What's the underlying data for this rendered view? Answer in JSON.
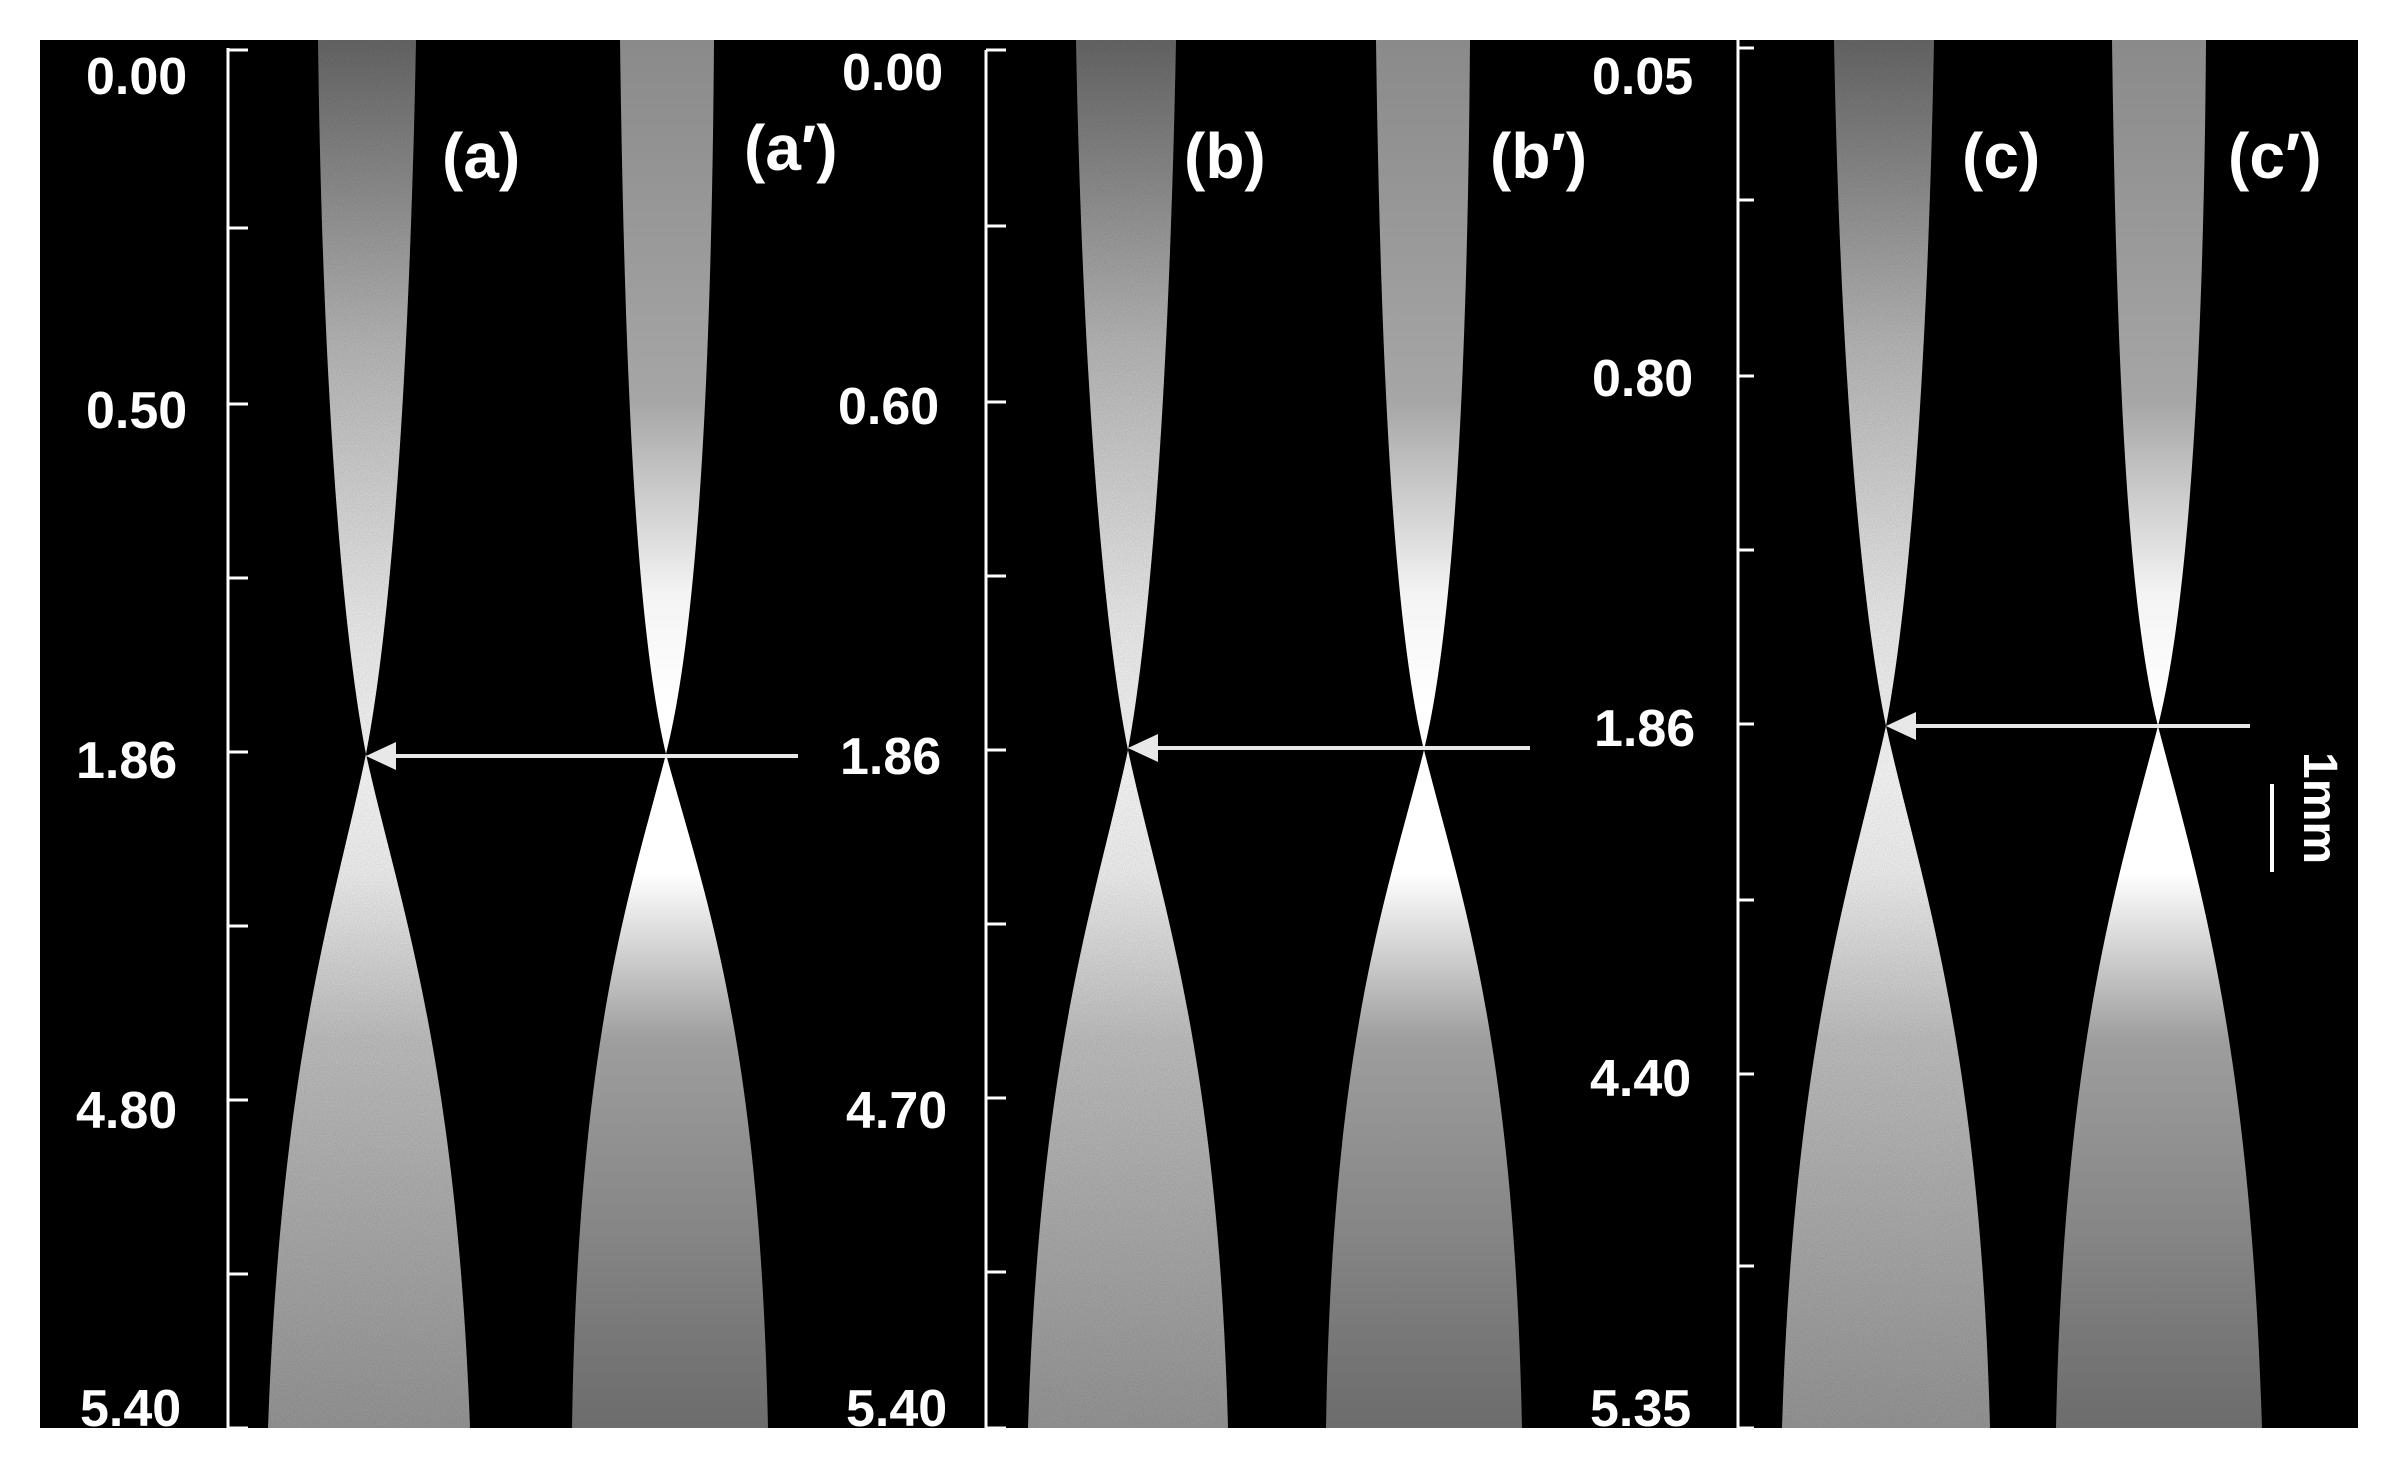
{
  "figure": {
    "background": "#000000",
    "frame_color": "#ffffff",
    "panels": [
      {
        "id": "a",
        "scale_ticks": [
          "0.00",
          "0.50",
          "1.86",
          "4.80",
          "5.40"
        ],
        "labels": [
          "(a)",
          "(a′)"
        ],
        "focus_label": "1.86"
      },
      {
        "id": "b",
        "scale_ticks": [
          "0.00",
          "0.60",
          "1.86",
          "4.70",
          "5.40"
        ],
        "labels": [
          "(b)",
          "(b′)"
        ],
        "focus_label": "1.86"
      },
      {
        "id": "c",
        "scale_ticks": [
          "0.05",
          "0.80",
          "1.86",
          "4.40",
          "5.35"
        ],
        "labels": [
          "(c)",
          "(c′)"
        ],
        "focus_label": "1.86"
      }
    ],
    "scale_bar": {
      "label": "1mm"
    }
  }
}
